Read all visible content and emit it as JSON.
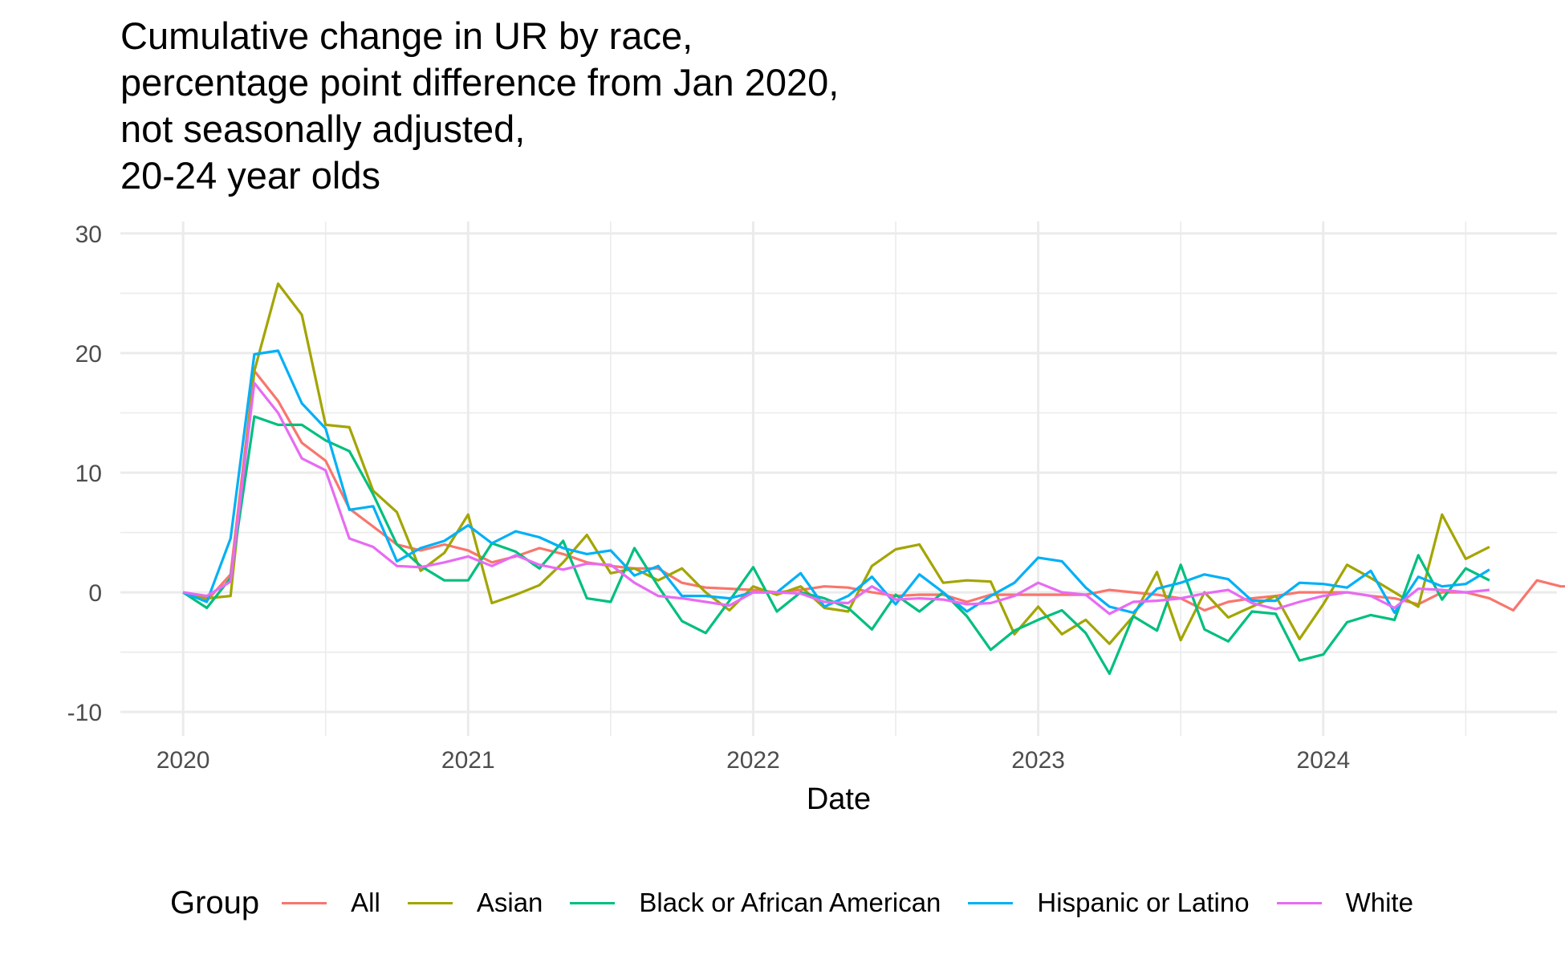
{
  "chart_data": {
    "type": "line",
    "title_lines": [
      "Cumulative change in UR by race,",
      "percentage point difference from Jan 2020,",
      "not seasonally adjusted,",
      "20-24 year olds"
    ],
    "xlabel": "Date",
    "ylabel": "",
    "xlim": [
      2019.78,
      2024.82
    ],
    "ylim": [
      -12,
      31
    ],
    "x_ticks": [
      2020,
      2021,
      2022,
      2023,
      2024
    ],
    "x_tick_labels": [
      "2020",
      "2021",
      "2022",
      "2023",
      "2024"
    ],
    "y_ticks": [
      -10,
      0,
      10,
      20,
      30
    ],
    "y_tick_labels": [
      "-10",
      "0",
      "10",
      "20",
      "30"
    ],
    "grid": true,
    "legend_title": "Group",
    "legend_position": "bottom",
    "x_start": "2020-01",
    "x_step": "1 month",
    "series": [
      {
        "name": "All",
        "color": "#F8766D",
        "values": [
          0,
          -0.7,
          1.5,
          18.5,
          16.0,
          12.5,
          11.0,
          7.0,
          5.5,
          4.0,
          3.5,
          4.0,
          3.5,
          2.5,
          3.0,
          3.7,
          3.2,
          2.5,
          2.2,
          2.0,
          2.0,
          0.8,
          0.4,
          0.3,
          0.2,
          0,
          0.2,
          0.5,
          0.4,
          0,
          -0.3,
          -0.2,
          -0.2,
          -0.8,
          -0.2,
          -0.2,
          -0.2,
          -0.2,
          -0.2,
          0.2,
          0,
          -0.2,
          -0.5,
          -1.5,
          -0.8,
          -0.5,
          -0.3,
          0,
          0,
          0,
          -0.3,
          -0.5,
          -1.0,
          0,
          0,
          -0.5,
          -1.5,
          1.0,
          0.5,
          0.5,
          0.6,
          0.8
        ]
      },
      {
        "name": "Asian",
        "color": "#A3A500",
        "values": [
          0,
          -0.5,
          -0.3,
          18.5,
          25.8,
          23.2,
          14.0,
          13.8,
          8.5,
          6.7,
          1.8,
          3.3,
          6.5,
          -0.9,
          -0.2,
          0.6,
          2.5,
          4.8,
          1.6,
          2.0,
          1.0,
          2.0,
          0,
          -1.5,
          0.5,
          -0.2,
          0.5,
          -1.3,
          -1.6,
          2.2,
          3.6,
          4.0,
          0.8,
          1.0,
          0.9,
          -3.5,
          -1.2,
          -3.5,
          -2.3,
          -4.3,
          -2.0,
          1.7,
          -4.0,
          0,
          -2.1,
          -1.2,
          -0.3,
          -3.9,
          -1.0,
          2.3,
          1.2,
          0,
          -1.2,
          6.5,
          2.8,
          3.8
        ]
      },
      {
        "name": "Black or African American",
        "color": "#00BF7D",
        "values": [
          0,
          -1.3,
          1.2,
          14.7,
          14.0,
          14.0,
          12.7,
          11.8,
          8.2,
          4.0,
          2.2,
          1.0,
          1.0,
          4.1,
          3.4,
          2.0,
          4.3,
          -0.5,
          -0.8,
          3.7,
          0.5,
          -2.4,
          -3.4,
          -0.7,
          2.1,
          -1.6,
          0,
          -0.5,
          -1.3,
          -3.1,
          -0.2,
          -1.6,
          0,
          -2.0,
          -4.8,
          -3.2,
          -2.3,
          -1.5,
          -3.4,
          -6.8,
          -2.0,
          -3.2,
          2.3,
          -3.1,
          -4.1,
          -1.6,
          -1.8,
          -5.7,
          -5.2,
          -2.5,
          -1.9,
          -2.3,
          3.1,
          -0.6,
          2.0,
          1.0
        ]
      },
      {
        "name": "Hispanic or Latino",
        "color": "#00B0F6",
        "values": [
          0,
          -0.8,
          4.5,
          19.9,
          20.2,
          15.8,
          13.7,
          6.9,
          7.2,
          2.6,
          3.7,
          4.3,
          5.6,
          4.1,
          5.1,
          4.6,
          3.7,
          3.2,
          3.5,
          1.4,
          2.2,
          -0.3,
          -0.3,
          -0.5,
          0,
          0,
          1.6,
          -1.2,
          -0.3,
          1.3,
          -1.0,
          1.5,
          0,
          -1.6,
          -0.3,
          0.8,
          2.9,
          2.6,
          0.4,
          -1.2,
          -1.7,
          0.3,
          0.8,
          1.5,
          1.1,
          -0.7,
          -0.7,
          0.8,
          0.7,
          0.4,
          1.8,
          -1.7,
          1.3,
          0.5,
          0.7,
          1.9
        ]
      },
      {
        "name": "White",
        "color": "#E76BF3",
        "values": [
          0,
          -0.3,
          0.9,
          17.5,
          15.0,
          11.2,
          10.2,
          4.5,
          3.8,
          2.2,
          2.1,
          2.5,
          3.0,
          2.2,
          3.1,
          2.3,
          1.9,
          2.4,
          2.3,
          0.8,
          -0.3,
          -0.5,
          -0.8,
          -1.1,
          0,
          0,
          -0.1,
          -0.8,
          -0.9,
          0.5,
          -0.6,
          -0.5,
          -0.6,
          -1.0,
          -0.9,
          -0.3,
          0.8,
          0,
          -0.2,
          -1.8,
          -0.8,
          -0.7,
          -0.5,
          -0.1,
          0.2,
          -0.9,
          -1.4,
          -0.8,
          -0.3,
          0,
          -0.3,
          -1.3,
          0.3,
          0.2,
          0,
          0.2
        ]
      }
    ]
  }
}
